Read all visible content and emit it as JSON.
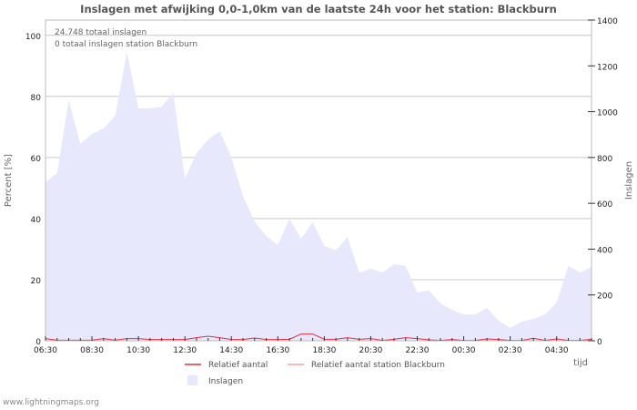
{
  "chart_data": {
    "type": "area",
    "title": "Inslagen met afwijking 0,0-1,0km van de laatste 24h voor het station: Blackburn",
    "ylabel_left": "Percent   [%]",
    "ylabel_right": "Inslagen",
    "xlabel": "tijd",
    "ylim_left": [
      0,
      105
    ],
    "ylim_right": [
      0,
      1400
    ],
    "yticks_left": [
      "0",
      "20",
      "40",
      "60",
      "80",
      "100"
    ],
    "yticks_right": [
      "0",
      "200",
      "400",
      "600",
      "800",
      "1000",
      "1200",
      "1400"
    ],
    "xtick_labels": [
      "06:30",
      "08:30",
      "10:30",
      "12:30",
      "14:30",
      "16:30",
      "18:30",
      "20:30",
      "22:30",
      "00:30",
      "02:30",
      "04:30"
    ],
    "annotations": [
      "24.748 totaal inslagen",
      "0 totaal inslagen station Blackburn"
    ],
    "series": [
      {
        "name": "Inslagen",
        "axis": "right",
        "color": "#e8e8fc",
        "values": [
          692,
          732,
          1050,
          859,
          903,
          927,
          982,
          1261,
          1014,
          1014,
          1022,
          1082,
          708,
          819,
          879,
          915,
          800,
          632,
          521,
          457,
          418,
          533,
          445,
          517,
          414,
          394,
          453,
          298,
          314,
          298,
          334,
          326,
          211,
          219,
          163,
          135,
          115,
          115,
          143,
          88,
          56,
          84,
          95,
          115,
          167,
          326,
          298,
          322
        ]
      },
      {
        "name": "Relatief aantal",
        "axis": "left",
        "color": "#e03040",
        "values": [
          0.7,
          0.2,
          0.2,
          0.2,
          0.2,
          0.7,
          0.2,
          0.7,
          0.7,
          0.4,
          0.4,
          0.4,
          0.4,
          1.0,
          1.5,
          1.0,
          0.4,
          0.4,
          0.9,
          0.4,
          0.4,
          0.5,
          2.2,
          2.2,
          0.5,
          0.5,
          1.0,
          0.5,
          0.7,
          0.1,
          0.5,
          1.0,
          0.7,
          0.3,
          0.1,
          0.4,
          0.1,
          0.1,
          0.6,
          0.4,
          0.1,
          0.1,
          0.8,
          0.1,
          0.6,
          0.1,
          0.1,
          0.5
        ]
      },
      {
        "name": "Relatief aantal station Blackburn",
        "axis": "left",
        "color": "#f4a0a0",
        "values": []
      }
    ],
    "legend": [
      "Relatief aantal",
      "Relatief aantal station Blackburn",
      "Inslagen"
    ]
  },
  "footer": "www.lightningmaps.org"
}
